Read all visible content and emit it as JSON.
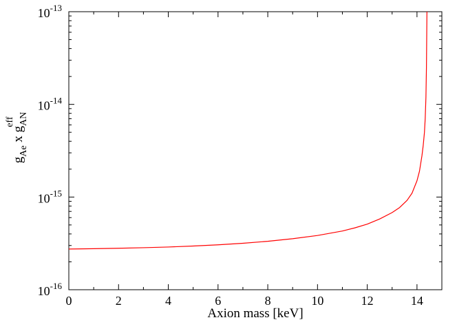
{
  "chart_data": {
    "type": "line",
    "xlabel": "Axion mass [keV]",
    "ylabel": {
      "g1": "g",
      "sub1": "Ae",
      "mid": " x ",
      "g2": "g",
      "sub2": "AN",
      "sup2": "eff"
    },
    "xlim": [
      0,
      15
    ],
    "ylim": [
      1e-16,
      1e-13
    ],
    "yscale": "log",
    "grid": false,
    "x_ticks": [
      {
        "value": 0,
        "label": "0"
      },
      {
        "value": 2,
        "label": "2"
      },
      {
        "value": 4,
        "label": "4"
      },
      {
        "value": 6,
        "label": "6"
      },
      {
        "value": 8,
        "label": "8"
      },
      {
        "value": 10,
        "label": "10"
      },
      {
        "value": 12,
        "label": "12"
      },
      {
        "value": 14,
        "label": "14"
      }
    ],
    "y_ticks": [
      {
        "value": 1e-16,
        "base": "10",
        "exp": "-16"
      },
      {
        "value": 1e-15,
        "base": "10",
        "exp": "-15"
      },
      {
        "value": 1e-14,
        "base": "10",
        "exp": "-14"
      },
      {
        "value": 1e-13,
        "base": "10",
        "exp": "-13"
      }
    ],
    "series": [
      {
        "color": "#ff0000",
        "x": [
          0,
          1,
          2,
          3,
          4,
          5,
          6,
          7,
          8,
          9,
          10,
          11,
          11.5,
          12,
          12.5,
          13,
          13.3,
          13.6,
          13.8,
          14.0,
          14.1,
          14.2,
          14.25,
          14.3,
          14.33,
          14.36,
          14.38,
          14.4
        ],
        "y": [
          2.75e-16,
          2.77e-16,
          2.8e-16,
          2.84e-16,
          2.89e-16,
          2.96e-16,
          3.05e-16,
          3.17e-16,
          3.33e-16,
          3.55e-16,
          3.85e-16,
          4.3e-16,
          4.65e-16,
          5.1e-16,
          5.8e-16,
          6.8e-16,
          7.7e-16,
          9.2e-16,
          1.1e-15,
          1.5e-15,
          1.9e-15,
          2.8e-15,
          3.6e-15,
          5e-15,
          7e-15,
          1.2e-14,
          2.5e-14,
          1e-13
        ]
      }
    ]
  }
}
